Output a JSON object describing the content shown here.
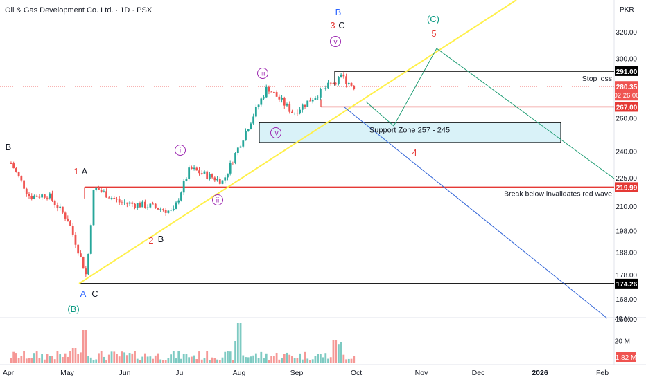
{
  "header": {
    "instrument": "Oil & Gas Development Co. Ltd.",
    "interval": "1D",
    "exchange": "PSX",
    "currency": "PKR",
    "separator": " · "
  },
  "colors": {
    "up": "#26a69a",
    "down": "#ef5350",
    "trendline": "#fff04a",
    "support_line": "#e53935",
    "stoploss_line": "#000000",
    "support_zone_fill": "#d9f2f8",
    "green_path": "#1f9d74",
    "blue_path": "#3567d8",
    "wave_red": "#e53935",
    "wave_blue": "#2962ff",
    "wave_green": "#089981",
    "wave_purple": "#9c27b0",
    "axis_text": "#131722"
  },
  "chart_data": {
    "type": "candlestick",
    "price_axis": {
      "scale": "log",
      "range": [
        160,
        345
      ],
      "ticks": [
        160,
        168,
        178,
        188,
        198,
        210,
        225,
        240,
        260,
        280,
        300,
        320
      ],
      "labels": [
        "160.00",
        "168.00",
        "178.00",
        "188.00",
        "198.00",
        "210.00",
        "225.00",
        "240.00",
        "260.00",
        "280.00",
        "300.00",
        "320.00"
      ]
    },
    "time_axis": {
      "labels": [
        "Apr",
        "May",
        "Jun",
        "Jul",
        "Aug",
        "Sep",
        "Oct",
        "Nov",
        "Dec",
        "2026",
        "Feb"
      ],
      "bold": [
        "2026"
      ]
    },
    "volume_axis": {
      "range": [
        0,
        40
      ],
      "labels": [
        "40 M",
        "20 M"
      ],
      "ticks": [
        40,
        20
      ],
      "current": "1.82 M"
    },
    "last_price": {
      "value": 280.35,
      "label": "280.35",
      "countdown": "02:26:00"
    },
    "candles_approx": [
      {
        "date": "2025-03-28",
        "o": 232,
        "h": 235,
        "l": 228,
        "c": 233
      },
      {
        "date": "2025-04-07",
        "o": 225,
        "h": 226,
        "l": 212,
        "c": 215
      },
      {
        "date": "2025-04-17",
        "o": 214,
        "h": 219,
        "l": 210,
        "c": 216
      },
      {
        "date": "2025-04-28",
        "o": 211,
        "h": 213,
        "l": 200,
        "c": 203
      },
      {
        "date": "2025-05-08",
        "o": 195,
        "h": 197,
        "l": 174.26,
        "c": 177
      },
      {
        "date": "2025-05-12",
        "o": 205,
        "h": 222,
        "l": 204,
        "c": 220
      },
      {
        "date": "2025-05-26",
        "o": 214,
        "h": 217,
        "l": 210,
        "c": 212
      },
      {
        "date": "2025-06-12",
        "o": 212,
        "h": 214,
        "l": 206,
        "c": 210
      },
      {
        "date": "2025-06-24",
        "o": 204,
        "h": 209,
        "l": 202,
        "c": 207
      },
      {
        "date": "2025-07-03",
        "o": 222,
        "h": 232,
        "l": 221,
        "c": 230
      },
      {
        "date": "2025-07-21",
        "o": 226,
        "h": 229,
        "l": 220,
        "c": 223
      },
      {
        "date": "2025-07-31",
        "o": 232,
        "h": 248,
        "l": 230,
        "c": 246
      },
      {
        "date": "2025-08-14",
        "o": 276,
        "h": 284,
        "l": 268,
        "c": 280
      },
      {
        "date": "2025-08-28",
        "o": 262,
        "h": 266,
        "l": 258,
        "c": 263
      },
      {
        "date": "2025-09-11",
        "o": 272,
        "h": 278,
        "l": 270,
        "c": 276
      },
      {
        "date": "2025-09-23",
        "o": 284,
        "h": 291,
        "l": 280,
        "c": 287
      },
      {
        "date": "2025-09-30",
        "o": 281,
        "h": 283,
        "l": 278,
        "c": 280.35
      }
    ],
    "levels": [
      {
        "name": "Stop loss",
        "value": 291.0,
        "label": "291.00",
        "color": "#000000"
      },
      {
        "name": "Support",
        "value": 267.0,
        "label": "267.00",
        "color": "#e53935"
      },
      {
        "name": "Break below invalidates red wave",
        "value": 219.99,
        "label": "219.99",
        "color": "#e53935"
      },
      {
        "name": "Low",
        "value": 174.26,
        "label": "174.26",
        "color": "#000000"
      }
    ],
    "support_zone": {
      "from": 245,
      "to": 257
    },
    "annotations": {
      "stop_loss": "Stop loss",
      "support_zone": "Support Zone 257 - 245",
      "invalidation": "Break below invalidates red wave"
    },
    "wave_labels": {
      "B_left": "B",
      "one": "1",
      "A_one": "A",
      "two": "2",
      "B_two": "B",
      "A_blue": "A",
      "C_low": "C",
      "B_paren": "(B)",
      "i_circle": "i",
      "ii_circle": "ii",
      "iii_circle": "iii",
      "iv_circle": "iv",
      "v_circle": "v",
      "B_top": "B",
      "three": "3",
      "C_top": "C",
      "C_paren": "(C)",
      "five": "5",
      "four": "4"
    }
  }
}
